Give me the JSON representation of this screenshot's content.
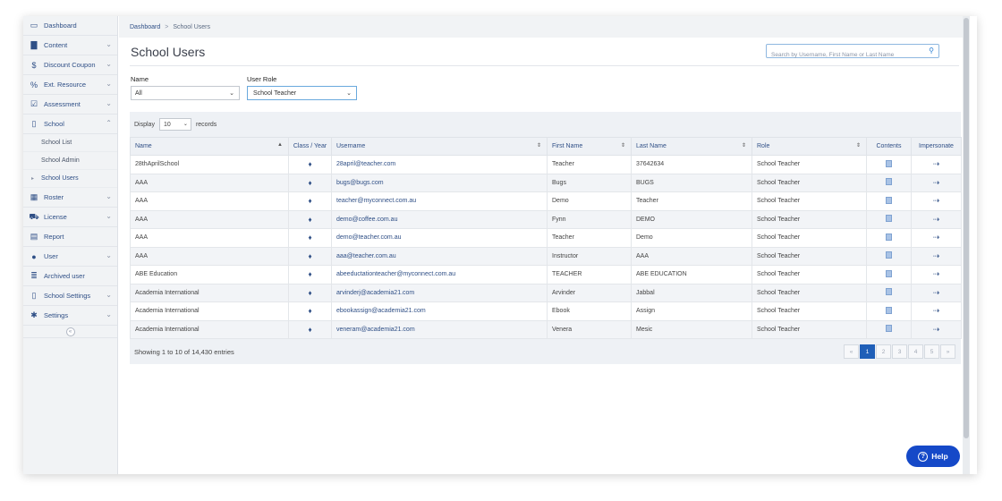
{
  "sidebar": {
    "items": [
      {
        "label": "Dashboard",
        "icon": "monitor-icon",
        "glyph": "▭",
        "chevron": ""
      },
      {
        "label": "Content",
        "icon": "book-icon",
        "glyph": "▇",
        "chevron": "⌄"
      },
      {
        "label": "Discount Coupon",
        "icon": "dollar-icon",
        "glyph": "$",
        "chevron": "⌄"
      },
      {
        "label": "Ext. Resource",
        "icon": "link-icon",
        "glyph": "%",
        "chevron": "⌄"
      },
      {
        "label": "Assessment",
        "icon": "checkbox-icon",
        "glyph": "☑",
        "chevron": "⌄"
      },
      {
        "label": "School",
        "icon": "school-icon",
        "glyph": "▯",
        "chevron": "⌃"
      }
    ],
    "school_sub": [
      {
        "label": "School List",
        "active": false
      },
      {
        "label": "School Admin",
        "active": false
      },
      {
        "label": "School Users",
        "active": true
      }
    ],
    "items2": [
      {
        "label": "Roster",
        "icon": "calendar-icon",
        "glyph": "▦",
        "chevron": "⌄"
      },
      {
        "label": "License",
        "icon": "cart-icon",
        "glyph": "⛟",
        "chevron": "⌄"
      },
      {
        "label": "Report",
        "icon": "report-icon",
        "glyph": "▤",
        "chevron": ""
      },
      {
        "label": "User",
        "icon": "users-icon",
        "glyph": "●",
        "chevron": "⌄"
      },
      {
        "label": "Archived user",
        "icon": "archive-icon",
        "glyph": "≣",
        "chevron": ""
      },
      {
        "label": "School Settings",
        "icon": "school-settings-icon",
        "glyph": "▯",
        "chevron": "⌄"
      },
      {
        "label": "Settings",
        "icon": "gear-icon",
        "glyph": "✱",
        "chevron": "⌄"
      }
    ],
    "collapse_glyph": "«"
  },
  "breadcrumb": {
    "home": "Dashboard",
    "sep": ">",
    "current": "School Users"
  },
  "page_title": "School Users",
  "search": {
    "placeholder": "Search by Username, First Name or Last Name",
    "icon_glyph": "🔍"
  },
  "filters": {
    "name": {
      "label": "Name",
      "value": "All"
    },
    "role": {
      "label": "User Role",
      "value": "School Teacher"
    }
  },
  "display": {
    "prefix": "Display",
    "value": "10",
    "suffix": "records"
  },
  "columns": [
    "Name",
    "Class / Year",
    "Username",
    "First Name",
    "Last Name",
    "Role",
    "Contents",
    "Impersonate"
  ],
  "sort_glyphs": {
    "asc": "▲",
    "both": "⇕"
  },
  "rows": [
    {
      "name": "28thAprilSchool",
      "username": "28april@teacher.com",
      "first": "Teacher",
      "last": "37642634",
      "role": "School Teacher"
    },
    {
      "name": "AAA",
      "username": "bugs@bugs.com",
      "first": "Bugs",
      "last": "BUGS",
      "role": "School Teacher"
    },
    {
      "name": "AAA",
      "username": "teacher@myconnect.com.au",
      "first": "Demo",
      "last": "Teacher",
      "role": "School Teacher"
    },
    {
      "name": "AAA",
      "username": "demo@coffee.com.au",
      "first": "Fynn",
      "last": "DEMO",
      "role": "School Teacher"
    },
    {
      "name": "AAA",
      "username": "demo@teacher.com.au",
      "first": "Teacher",
      "last": "Demo",
      "role": "School Teacher"
    },
    {
      "name": "AAA",
      "username": "aaa@teacher.com.au",
      "first": "Instructor",
      "last": "AAA",
      "role": "School Teacher"
    },
    {
      "name": "ABE Education",
      "username": "abeeductationteacher@myconnect.com.au",
      "first": "TEACHER",
      "last": "ABE EDUCATION",
      "role": "School Teacher"
    },
    {
      "name": "Academia International",
      "username": "arvinderj@academia21.com",
      "first": "Arvinder",
      "last": "Jabbal",
      "role": "School Teacher"
    },
    {
      "name": "Academia International",
      "username": "ebookassign@academia21.com",
      "first": "Ebook",
      "last": "Assign",
      "role": "School Teacher"
    },
    {
      "name": "Academia International",
      "username": "veneram@academia21.com",
      "first": "Venera",
      "last": "Mesic",
      "role": "School Teacher"
    }
  ],
  "row_icons": {
    "class_year": "tag-icon",
    "contents": "document-icon",
    "impersonate": "sign-in-icon"
  },
  "footer": {
    "showing": "Showing 1 to 10 of 14,430 entries"
  },
  "pagination": [
    "«",
    "1",
    "2",
    "3",
    "4",
    "5",
    "»"
  ],
  "pagination_active": "1",
  "help": {
    "label": "Help",
    "glyph": "?"
  },
  "colors": {
    "accent": "#2f4f86",
    "help": "#1549c8",
    "active_page": "#1f5fb8"
  }
}
